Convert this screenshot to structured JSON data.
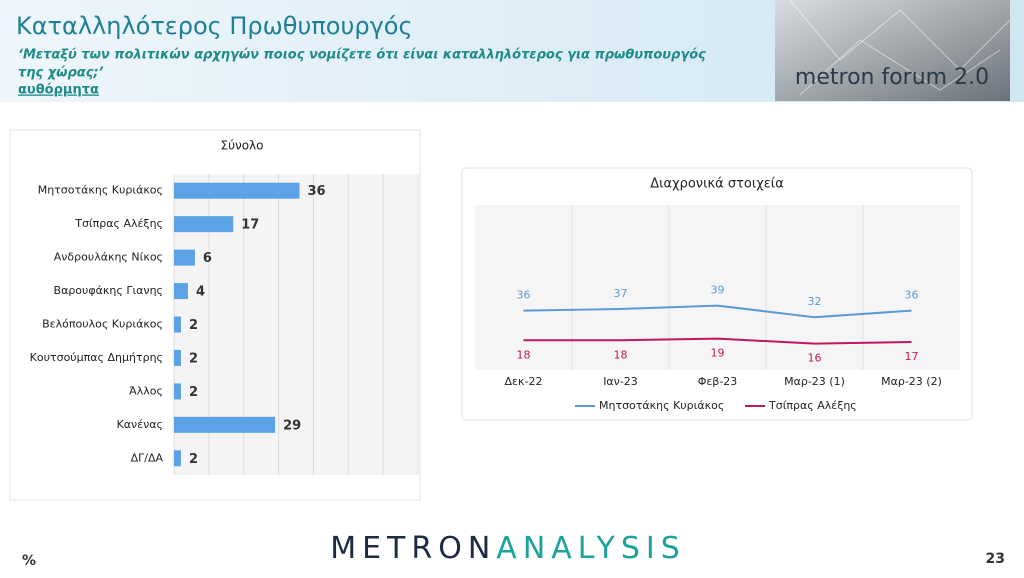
{
  "header": {
    "title": "Καταλληλότερος Πρωθυπουργός",
    "subtitle": [
      "‘Μεταξύ των πολιτικών αρχηγών ποιος νομίζετε ότι είναι καταλληλότερος για πρωθυπουργός",
      "της χώρας;’"
    ],
    "note": "αυθόρμητα",
    "logo": "metron forum 2.0"
  },
  "chart_data": [
    {
      "type": "hbar",
      "title": "Σύνολο",
      "categories": [
        "Μητσοτάκης Κυριάκος",
        "Τσίπρας Αλέξης",
        "Ανδρουλάκης Νίκος",
        "Βαρουφάκης Γιανης",
        "Βελόπουλος Κυριάκος",
        "Κουτσούμπας Δημήτρης",
        "Άλλος",
        "Κανένας",
        "ΔΓ/ΔΑ"
      ],
      "values": [
        36,
        17,
        6,
        4,
        2,
        2,
        2,
        29,
        2
      ],
      "color": "#5ba3e6",
      "xlim": [
        0,
        70
      ],
      "grid": true
    },
    {
      "type": "line",
      "title": "Διαχρονικά στοιχεία",
      "categories": [
        "Δεκ-22",
        "Ιαν-23",
        "Φεβ-23",
        "Μαρ-23 (1)",
        "Μαρ-23 (2)"
      ],
      "series": [
        {
          "name": "Μητσοτάκης Κυριάκος",
          "color": "#5b9bd5",
          "values": [
            36,
            37,
            39,
            32,
            36
          ]
        },
        {
          "name": "Τσίπρας Αλέξης",
          "color": "#c2185b",
          "values": [
            18,
            18,
            19,
            16,
            17
          ]
        }
      ],
      "ylim": [
        0,
        100
      ],
      "legend": "bottom"
    }
  ],
  "footer": {
    "brand": [
      "METRON",
      "ANALYSIS"
    ],
    "unit": "%",
    "page": "23"
  }
}
